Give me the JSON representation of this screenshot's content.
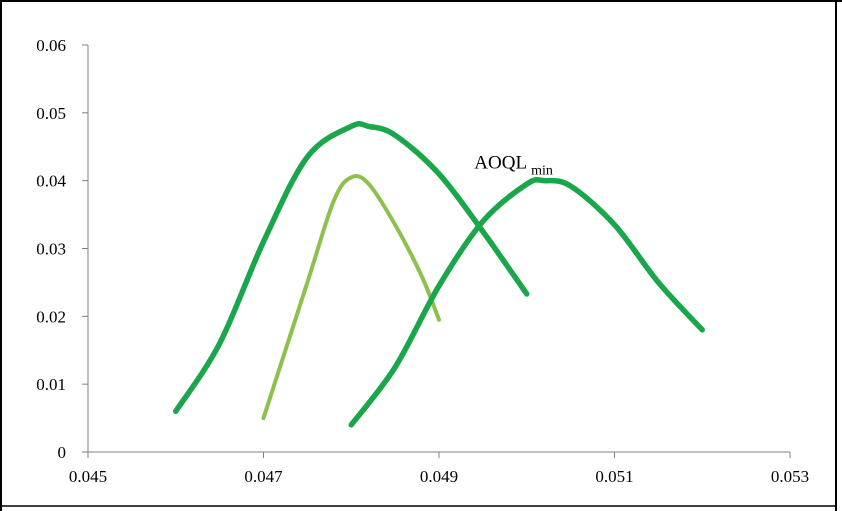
{
  "chart_data": {
    "type": "line",
    "title": "",
    "xlabel": "",
    "ylabel": "",
    "xlim": [
      0.045,
      0.053
    ],
    "ylim": [
      0,
      0.06
    ],
    "x_ticks": [
      "0.045",
      "0.047",
      "0.049",
      "0.051",
      "0.053"
    ],
    "y_ticks": [
      "0",
      "0.01",
      "0.02",
      "0.03",
      "0.04",
      "0.05",
      "0.06"
    ],
    "grid": false,
    "legend": "none",
    "annotation": {
      "text_main": "AOQL",
      "text_sub": "min",
      "near": {
        "x": 0.0502,
        "y": 0.0415
      }
    },
    "series": [
      {
        "color": "#1aa64a",
        "x": [
          0.046,
          0.0465,
          0.047,
          0.0475,
          0.048,
          0.0482,
          0.0485,
          0.049,
          0.0495,
          0.05
        ],
        "y": [
          0.006,
          0.016,
          0.031,
          0.0435,
          0.048,
          0.048,
          0.0467,
          0.041,
          0.0325,
          0.0233
        ]
      },
      {
        "color": "#8dc04d",
        "x": [
          0.047,
          0.0475,
          0.0478,
          0.048,
          0.0482,
          0.0485,
          0.0488,
          0.049
        ],
        "y": [
          0.005,
          0.025,
          0.037,
          0.0405,
          0.0395,
          0.0335,
          0.026,
          0.0195
        ]
      },
      {
        "color": "#1aa64a",
        "x": [
          0.048,
          0.0485,
          0.049,
          0.0495,
          0.05,
          0.0502,
          0.0505,
          0.051,
          0.0515,
          0.052
        ],
        "y": [
          0.004,
          0.0125,
          0.0245,
          0.034,
          0.0395,
          0.04,
          0.0392,
          0.0335,
          0.025,
          0.018
        ]
      }
    ]
  }
}
